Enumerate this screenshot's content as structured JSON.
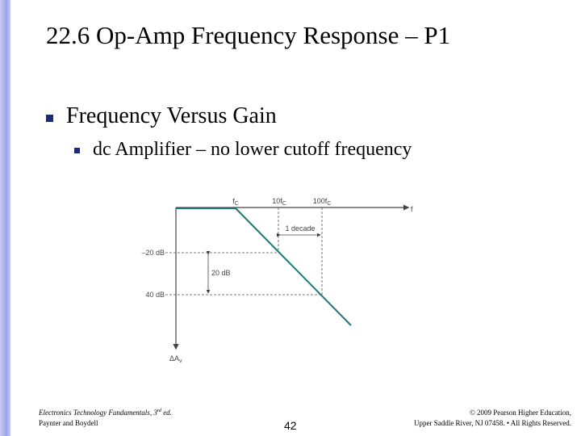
{
  "header": {
    "title": "22.6 Op-Amp Frequency Response – P1"
  },
  "bullets": [
    {
      "text": "Frequency Versus Gain",
      "sub": [
        {
          "text": "dc Amplifier – no lower cutoff frequency"
        }
      ]
    }
  ],
  "figure": {
    "freq_labels": [
      {
        "text": "f",
        "sub": "C"
      },
      {
        "text": "10f",
        "sub": "C"
      },
      {
        "text": "100f",
        "sub": "C"
      }
    ],
    "x_axis_label": "f",
    "y_axis_label": {
      "text": "ΔA",
      "sub": "v"
    },
    "gain_labels": [
      "–20 dB",
      "40 dB"
    ],
    "decade_label": "1 decade",
    "db_span_label": "20 dB"
  },
  "footer": {
    "book_title": "Electronics Technology Fundamentals, 3",
    "book_sup": "rd",
    "book_edition": " ed.",
    "authors": "Paynter and Boydell",
    "page": "42",
    "copyright_1": "© 2009 Pearson Higher Education,",
    "copyright_2": "Upper Saddle River, NJ 07458. • All Rights Reserved."
  }
}
